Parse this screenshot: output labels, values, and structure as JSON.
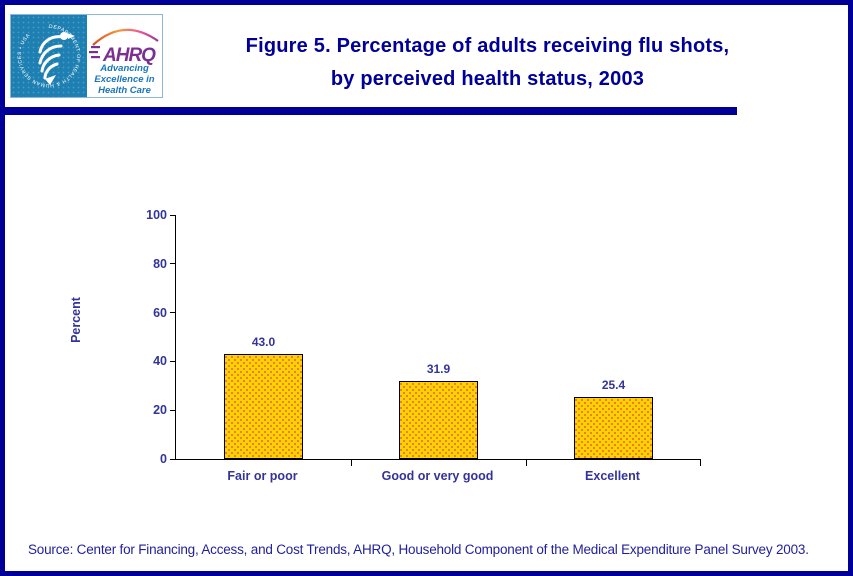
{
  "header": {
    "title_line1": "Figure 5. Percentage of adults receiving flu shots,",
    "title_line2": "by perceived health status, 2003",
    "logo": {
      "hhs_ring_text": "DEPARTMENT OF HEALTH & HUMAN SERVICES • USA",
      "ahrq_acronym": "AHRQ",
      "tagline_line1": "Advancing",
      "tagline_line2": "Excellence in",
      "tagline_line3": "Health Care"
    }
  },
  "chart_data": {
    "type": "bar",
    "title": "Percentage of adults receiving flu shots, by perceived health status, 2003",
    "categories": [
      "Fair or poor",
      "Good or very good",
      "Excellent"
    ],
    "values": [
      43.0,
      31.9,
      25.4
    ],
    "value_labels": [
      "43.0",
      "31.9",
      "25.4"
    ],
    "xlabel": "",
    "ylabel": "Percent",
    "ylim": [
      0,
      100
    ],
    "yticks": [
      0,
      20,
      40,
      60,
      80,
      100
    ],
    "grid": false,
    "legend": false,
    "bar_color": "#ffd104",
    "bar_dot_color": "#e8751a",
    "text_color": "#333399"
  },
  "colors": {
    "navy": "#000099",
    "hhs_blue": "#1e80b2",
    "ahrq_purple": "#7b2f92",
    "tagline_blue": "#1b75bc"
  },
  "source": "Source: Center for Financing, Access, and Cost Trends, AHRQ, Household Component of the Medical Expenditure Panel Survey 2003."
}
